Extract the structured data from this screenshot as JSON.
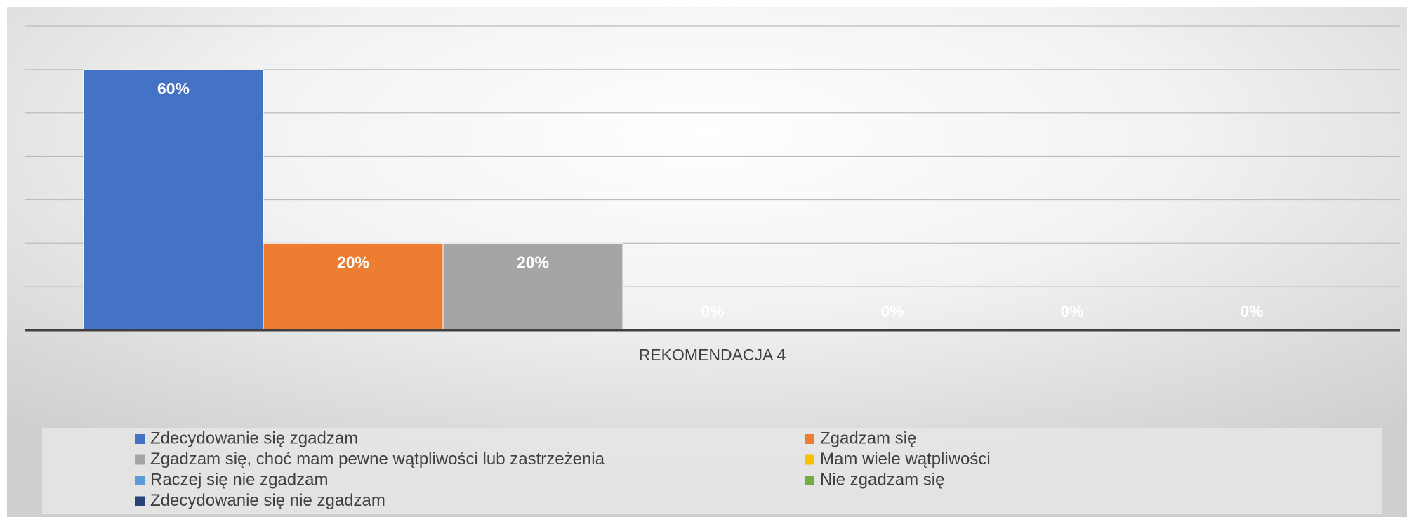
{
  "chart_data": {
    "type": "bar",
    "categories": [
      "REKOMENDACJA 4"
    ],
    "series": [
      {
        "name": "Zdecydowanie się zgadzam",
        "color": "#4472c4",
        "values": [
          60
        ],
        "value_labels": [
          "60%"
        ]
      },
      {
        "name": "Zgadzam się",
        "color": "#ed7d31",
        "values": [
          20
        ],
        "value_labels": [
          "20%"
        ]
      },
      {
        "name": "Zgadzam się, choć mam pewne wątpliwości lub zastrzeżenia",
        "color": "#a5a5a5",
        "values": [
          20
        ],
        "value_labels": [
          "20%"
        ]
      },
      {
        "name": "Mam wiele wątpliwości",
        "color": "#ffc000",
        "values": [
          0
        ],
        "value_labels": [
          "0%"
        ]
      },
      {
        "name": "Raczej się nie zgadzam",
        "color": "#5b9bd5",
        "values": [
          0
        ],
        "value_labels": [
          "0%"
        ]
      },
      {
        "name": "Nie zgadzam się",
        "color": "#70ad47",
        "values": [
          0
        ],
        "value_labels": [
          "0%"
        ]
      },
      {
        "name": "Zdecydowanie się nie zgadzam",
        "color": "#264478",
        "values": [
          0
        ],
        "value_labels": [
          "0%"
        ]
      }
    ],
    "ylim": [
      0,
      70
    ],
    "yticks": [
      0,
      10,
      20,
      30,
      40,
      50,
      60,
      70
    ],
    "grid": true
  }
}
